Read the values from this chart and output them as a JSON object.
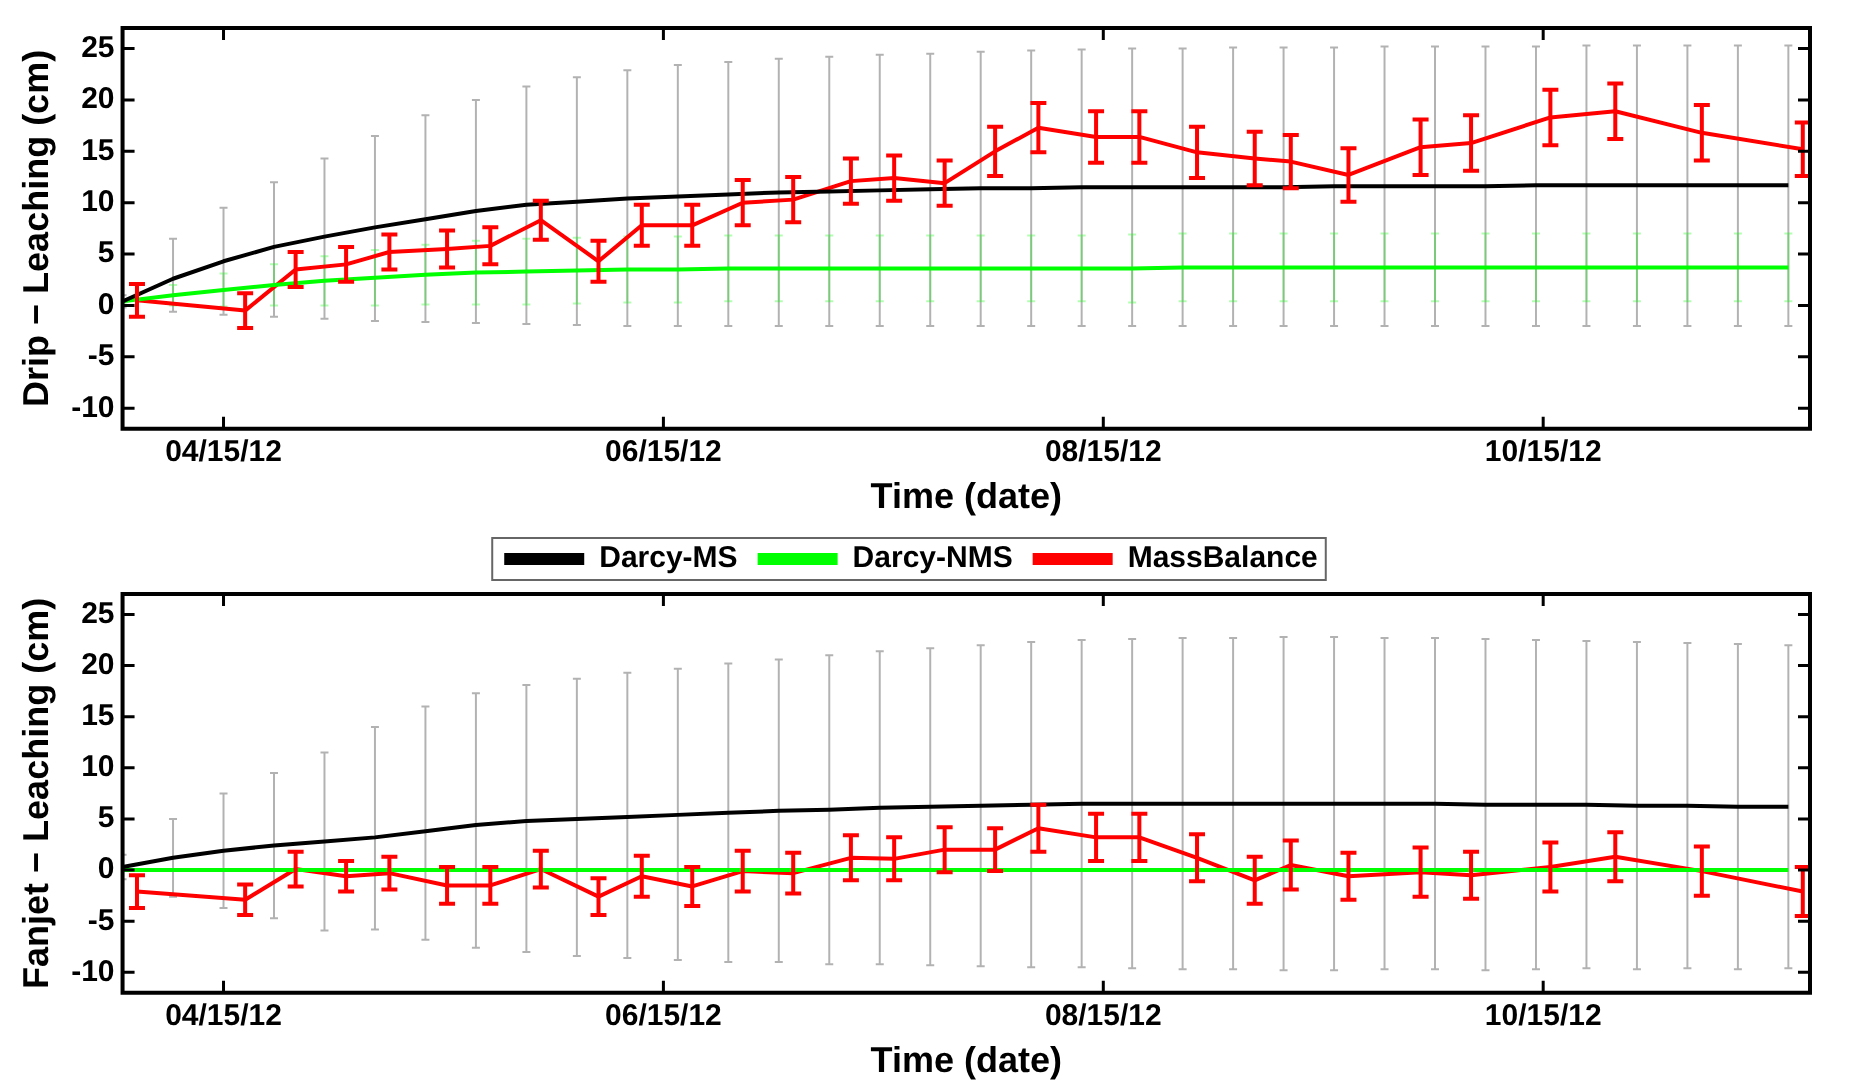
{
  "chart_data": [
    {
      "type": "line",
      "xlabel": "Time (date)",
      "ylabel": "Drip − Leaching (cm)",
      "xlim": [
        "2012-04-01",
        "2012-11-21"
      ],
      "xticks": [
        {
          "value": "2012-04-15",
          "label": "04/15/12"
        },
        {
          "value": "2012-06-15",
          "label": "06/15/12"
        },
        {
          "value": "2012-08-15",
          "label": "08/15/12"
        },
        {
          "value": "2012-10-15",
          "label": "10/15/12"
        }
      ],
      "ylim": [
        -12,
        27
      ],
      "yticks": [
        -10,
        -5,
        0,
        5,
        10,
        15,
        20,
        25
      ],
      "grid": false,
      "legend": false,
      "marker": "none",
      "x": [
        "2012-04-01",
        "2012-04-08",
        "2012-04-15",
        "2012-04-22",
        "2012-04-29",
        "2012-05-06",
        "2012-05-13",
        "2012-05-20",
        "2012-05-27",
        "2012-06-03",
        "2012-06-10",
        "2012-06-17",
        "2012-06-24",
        "2012-07-01",
        "2012-07-08",
        "2012-07-15",
        "2012-07-22",
        "2012-07-29",
        "2012-08-05",
        "2012-08-12",
        "2012-08-19",
        "2012-08-26",
        "2012-09-02",
        "2012-09-09",
        "2012-09-16",
        "2012-09-23",
        "2012-09-30",
        "2012-10-07",
        "2012-10-14",
        "2012-10-21",
        "2012-10-28",
        "2012-11-04",
        "2012-11-11",
        "2012-11-18"
      ],
      "series": [
        {
          "color": "#000000",
          "values": [
            0.4,
            2.6,
            4.3,
            5.7,
            6.7,
            7.6,
            8.4,
            9.2,
            9.8,
            10.1,
            10.4,
            10.6,
            10.8,
            11.0,
            11.1,
            11.2,
            11.3,
            11.4,
            11.4,
            11.5,
            11.5,
            11.5,
            11.5,
            11.5,
            11.6,
            11.6,
            11.6,
            11.6,
            11.7,
            11.7,
            11.7,
            11.7,
            11.7,
            11.7
          ],
          "errors": [
            [
              -0.2,
              1.0
            ],
            [
              -0.6,
              6.5
            ],
            [
              -0.9,
              9.5
            ],
            [
              -1.1,
              12.0
            ],
            [
              -1.3,
              14.3
            ],
            [
              -1.5,
              16.5
            ],
            [
              -1.6,
              18.5
            ],
            [
              -1.7,
              20.0
            ],
            [
              -1.8,
              21.3
            ],
            [
              -1.9,
              22.2
            ],
            [
              -2.0,
              22.9
            ],
            [
              -2.0,
              23.4
            ],
            [
              -2.0,
              23.7
            ],
            [
              -2.0,
              24.0
            ],
            [
              -2.0,
              24.2
            ],
            [
              -2.0,
              24.4
            ],
            [
              -2.0,
              24.5
            ],
            [
              -2.0,
              24.7
            ],
            [
              -2.0,
              24.8
            ],
            [
              -2.0,
              24.9
            ],
            [
              -2.0,
              25.0
            ],
            [
              -2.0,
              25.0
            ],
            [
              -2.0,
              25.1
            ],
            [
              -2.0,
              25.1
            ],
            [
              -2.0,
              25.1
            ],
            [
              -2.0,
              25.2
            ],
            [
              -2.0,
              25.2
            ],
            [
              -2.0,
              25.2
            ],
            [
              -2.0,
              25.2
            ],
            [
              -2.0,
              25.3
            ],
            [
              -2.0,
              25.3
            ],
            [
              -2.0,
              25.3
            ],
            [
              -2.0,
              25.3
            ],
            [
              -2.0,
              25.3
            ]
          ]
        },
        {
          "color": "#00ff00",
          "values": [
            0.4,
            1.0,
            1.5,
            2.0,
            2.4,
            2.7,
            3.0,
            3.2,
            3.3,
            3.4,
            3.5,
            3.5,
            3.6,
            3.6,
            3.6,
            3.6,
            3.6,
            3.6,
            3.6,
            3.6,
            3.6,
            3.7,
            3.7,
            3.7,
            3.7,
            3.7,
            3.7,
            3.7,
            3.7,
            3.7,
            3.7,
            3.7,
            3.7,
            3.7
          ],
          "errors": [
            [
              0.2,
              0.6
            ],
            [
              0.0,
              2.0
            ],
            [
              -0.1,
              3.1
            ],
            [
              0.0,
              4.0
            ],
            [
              0.0,
              4.8
            ],
            [
              0.0,
              5.4
            ],
            [
              0.1,
              5.9
            ],
            [
              0.1,
              6.3
            ],
            [
              0.1,
              6.5
            ],
            [
              0.2,
              6.6
            ],
            [
              0.3,
              6.7
            ],
            [
              0.3,
              6.7
            ],
            [
              0.4,
              6.8
            ],
            [
              0.4,
              6.8
            ],
            [
              0.4,
              6.8
            ],
            [
              0.4,
              6.8
            ],
            [
              0.4,
              6.8
            ],
            [
              0.4,
              6.8
            ],
            [
              0.4,
              6.8
            ],
            [
              0.4,
              6.8
            ],
            [
              0.3,
              6.9
            ],
            [
              0.4,
              7.0
            ],
            [
              0.4,
              7.0
            ],
            [
              0.4,
              7.0
            ],
            [
              0.4,
              7.0
            ],
            [
              0.4,
              7.0
            ],
            [
              0.4,
              7.0
            ],
            [
              0.4,
              7.0
            ],
            [
              0.4,
              7.0
            ],
            [
              0.4,
              7.0
            ],
            [
              0.4,
              7.0
            ],
            [
              0.4,
              7.0
            ],
            [
              0.4,
              7.0
            ],
            [
              0.4,
              7.0
            ]
          ]
        },
        {
          "color": "#ff0000",
          "x": [
            "2012-04-03",
            "2012-04-18",
            "2012-04-25",
            "2012-05-02",
            "2012-05-08",
            "2012-05-16",
            "2012-05-22",
            "2012-05-29",
            "2012-06-06",
            "2012-06-12",
            "2012-06-19",
            "2012-06-26",
            "2012-07-03",
            "2012-07-11",
            "2012-07-17",
            "2012-07-24",
            "2012-07-31",
            "2012-08-06",
            "2012-08-14",
            "2012-08-20",
            "2012-08-28",
            "2012-09-05",
            "2012-09-10",
            "2012-09-18",
            "2012-09-28",
            "2012-10-05",
            "2012-10-16",
            "2012-10-25",
            "2012-11-06",
            "2012-11-20"
          ],
          "values": [
            0.5,
            -0.5,
            3.5,
            4.0,
            5.2,
            5.5,
            5.8,
            8.3,
            4.3,
            7.8,
            7.8,
            10.0,
            10.3,
            12.1,
            12.4,
            11.9,
            15.0,
            17.3,
            16.4,
            16.4,
            14.9,
            14.3,
            14.0,
            12.7,
            15.4,
            15.8,
            18.3,
            18.9,
            16.8,
            15.2
          ],
          "errors": [
            1.6,
            1.7,
            1.7,
            1.7,
            1.7,
            1.8,
            1.8,
            1.9,
            2.0,
            2.0,
            2.0,
            2.2,
            2.2,
            2.2,
            2.2,
            2.2,
            2.4,
            2.4,
            2.5,
            2.5,
            2.5,
            2.6,
            2.6,
            2.6,
            2.7,
            2.7,
            2.7,
            2.7,
            2.7,
            2.6
          ]
        }
      ]
    },
    {
      "type": "line",
      "xlabel": "Time (date)",
      "ylabel": "Fanjet − Leaching (cm)",
      "xlim": [
        "2012-04-01",
        "2012-11-21"
      ],
      "xticks": [
        {
          "value": "2012-04-15",
          "label": "04/15/12"
        },
        {
          "value": "2012-06-15",
          "label": "06/15/12"
        },
        {
          "value": "2012-08-15",
          "label": "08/15/12"
        },
        {
          "value": "2012-10-15",
          "label": "10/15/12"
        }
      ],
      "ylim": [
        -12,
        27
      ],
      "yticks": [
        -10,
        -5,
        0,
        5,
        10,
        15,
        20,
        25
      ],
      "grid": false,
      "legend": "top",
      "marker": "none",
      "x": [
        "2012-04-01",
        "2012-04-08",
        "2012-04-15",
        "2012-04-22",
        "2012-04-29",
        "2012-05-06",
        "2012-05-13",
        "2012-05-20",
        "2012-05-27",
        "2012-06-03",
        "2012-06-10",
        "2012-06-17",
        "2012-06-24",
        "2012-07-01",
        "2012-07-08",
        "2012-07-15",
        "2012-07-22",
        "2012-07-29",
        "2012-08-05",
        "2012-08-12",
        "2012-08-19",
        "2012-08-26",
        "2012-09-02",
        "2012-09-09",
        "2012-09-16",
        "2012-09-23",
        "2012-09-30",
        "2012-10-07",
        "2012-10-14",
        "2012-10-21",
        "2012-10-28",
        "2012-11-04",
        "2012-11-11",
        "2012-11-18"
      ],
      "series": [
        {
          "name": "Darcy-MS",
          "color": "#000000",
          "values": [
            0.3,
            1.2,
            1.9,
            2.4,
            2.8,
            3.2,
            3.8,
            4.4,
            4.8,
            5.0,
            5.2,
            5.4,
            5.6,
            5.8,
            5.9,
            6.1,
            6.2,
            6.3,
            6.4,
            6.5,
            6.5,
            6.5,
            6.5,
            6.5,
            6.5,
            6.5,
            6.5,
            6.4,
            6.4,
            6.4,
            6.3,
            6.3,
            6.2,
            6.2
          ],
          "errors": [
            [
              -0.9,
              1.5
            ],
            [
              -2.6,
              5.0
            ],
            [
              -3.7,
              7.5
            ],
            [
              -4.7,
              9.5
            ],
            [
              -5.9,
              11.5
            ],
            [
              -5.8,
              14.0
            ],
            [
              -6.8,
              16.0
            ],
            [
              -7.6,
              17.3
            ],
            [
              -8.0,
              18.1
            ],
            [
              -8.4,
              18.7
            ],
            [
              -8.6,
              19.3
            ],
            [
              -8.8,
              19.7
            ],
            [
              -9.0,
              20.2
            ],
            [
              -9.0,
              20.6
            ],
            [
              -9.2,
              21.0
            ],
            [
              -9.2,
              21.4
            ],
            [
              -9.3,
              21.7
            ],
            [
              -9.4,
              22.0
            ],
            [
              -9.5,
              22.3
            ],
            [
              -9.5,
              22.5
            ],
            [
              -9.6,
              22.6
            ],
            [
              -9.7,
              22.7
            ],
            [
              -9.7,
              22.7
            ],
            [
              -9.8,
              22.8
            ],
            [
              -9.8,
              22.8
            ],
            [
              -9.7,
              22.7
            ],
            [
              -9.7,
              22.7
            ],
            [
              -9.8,
              22.6
            ],
            [
              -9.7,
              22.5
            ],
            [
              -9.6,
              22.4
            ],
            [
              -9.7,
              22.3
            ],
            [
              -9.6,
              22.2
            ],
            [
              -9.7,
              22.1
            ],
            [
              -9.6,
              22.0
            ]
          ]
        },
        {
          "name": "Darcy-NMS",
          "color": "#00ff00",
          "values": [
            0,
            0,
            0,
            0,
            0,
            0,
            0,
            0,
            0,
            0,
            0,
            0,
            0,
            0,
            0,
            0,
            0,
            0,
            0,
            0,
            0,
            0,
            0,
            0,
            0,
            0,
            0,
            0,
            0,
            0,
            0,
            0,
            0,
            0
          ]
        },
        {
          "name": "MassBalance",
          "color": "#ff0000",
          "x": [
            "2012-04-03",
            "2012-04-18",
            "2012-04-25",
            "2012-05-02",
            "2012-05-08",
            "2012-05-16",
            "2012-05-22",
            "2012-05-29",
            "2012-06-06",
            "2012-06-12",
            "2012-06-19",
            "2012-06-26",
            "2012-07-03",
            "2012-07-11",
            "2012-07-17",
            "2012-07-24",
            "2012-07-31",
            "2012-08-06",
            "2012-08-14",
            "2012-08-20",
            "2012-08-28",
            "2012-09-05",
            "2012-09-10",
            "2012-09-18",
            "2012-09-28",
            "2012-10-05",
            "2012-10-16",
            "2012-10-25",
            "2012-11-06",
            "2012-11-20"
          ],
          "values": [
            -2.1,
            -2.9,
            0.1,
            -0.6,
            -0.3,
            -1.5,
            -1.5,
            0.1,
            -2.6,
            -0.6,
            -1.6,
            -0.1,
            -0.3,
            1.2,
            1.1,
            2.0,
            2.0,
            4.1,
            3.2,
            3.2,
            1.2,
            -1.0,
            0.5,
            -0.6,
            -0.2,
            -0.5,
            0.3,
            1.3,
            -0.1,
            -2.1
          ],
          "errors": [
            1.6,
            1.5,
            1.7,
            1.5,
            1.6,
            1.8,
            1.8,
            1.8,
            1.8,
            2.0,
            1.9,
            2.0,
            2.0,
            2.2,
            2.1,
            2.2,
            2.1,
            2.3,
            2.3,
            2.3,
            2.3,
            2.3,
            2.4,
            2.3,
            2.4,
            2.3,
            2.4,
            2.4,
            2.4,
            2.4
          ]
        }
      ]
    }
  ]
}
